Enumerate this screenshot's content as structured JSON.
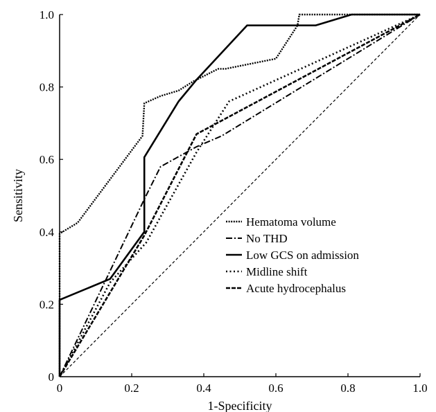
{
  "chart_data": {
    "type": "line",
    "title": "",
    "xlabel": "1-Specificity",
    "ylabel": "Sensitivity",
    "xlim": [
      0,
      1
    ],
    "ylim": [
      0,
      1
    ],
    "xticks": [
      "0",
      "0.2",
      "0.4",
      "0.6",
      "0.8",
      "1.0"
    ],
    "yticks": [
      "0",
      "0.2",
      "0.4",
      "0.6",
      "0.8",
      "1.0"
    ],
    "grid": false,
    "legend_position": "center-right",
    "reference_line": [
      [
        0,
        0
      ],
      [
        1,
        1
      ]
    ],
    "series": [
      {
        "name": "Hematoma volume",
        "style": "dotted-dense",
        "points": [
          [
            0,
            0
          ],
          [
            0,
            0.395
          ],
          [
            0.05,
            0.425
          ],
          [
            0.23,
            0.665
          ],
          [
            0.235,
            0.755
          ],
          [
            0.28,
            0.775
          ],
          [
            0.33,
            0.79
          ],
          [
            0.37,
            0.815
          ],
          [
            0.44,
            0.85
          ],
          [
            0.46,
            0.85
          ],
          [
            0.6,
            0.878
          ],
          [
            0.66,
            0.97
          ],
          [
            0.665,
            1.0
          ],
          [
            1.0,
            1.0
          ]
        ]
      },
      {
        "name": "No THD",
        "style": "dash-dot",
        "points": [
          [
            0,
            0
          ],
          [
            0.235,
            0.49
          ],
          [
            0.28,
            0.58
          ],
          [
            0.38,
            0.635
          ],
          [
            0.45,
            0.665
          ],
          [
            1.0,
            1.0
          ]
        ]
      },
      {
        "name": "Low GCS on admission",
        "style": "solid",
        "points": [
          [
            0,
            0
          ],
          [
            0,
            0.212
          ],
          [
            0.14,
            0.27
          ],
          [
            0.235,
            0.4
          ],
          [
            0.235,
            0.606
          ],
          [
            0.33,
            0.76
          ],
          [
            0.38,
            0.82
          ],
          [
            0.52,
            0.97
          ],
          [
            0.71,
            0.97
          ],
          [
            0.81,
            1.0
          ],
          [
            1.0,
            1.0
          ]
        ]
      },
      {
        "name": "Midline shift",
        "style": "dotted",
        "points": [
          [
            0,
            0
          ],
          [
            0.14,
            0.26
          ],
          [
            0.24,
            0.37
          ],
          [
            0.38,
            0.62
          ],
          [
            0.47,
            0.76
          ],
          [
            1.0,
            1.0
          ]
        ]
      },
      {
        "name": "Acute hydrocephalus",
        "style": "dashed",
        "points": [
          [
            0,
            0
          ],
          [
            0.235,
            0.39
          ],
          [
            0.38,
            0.67
          ],
          [
            1.0,
            1.0
          ]
        ]
      }
    ]
  }
}
